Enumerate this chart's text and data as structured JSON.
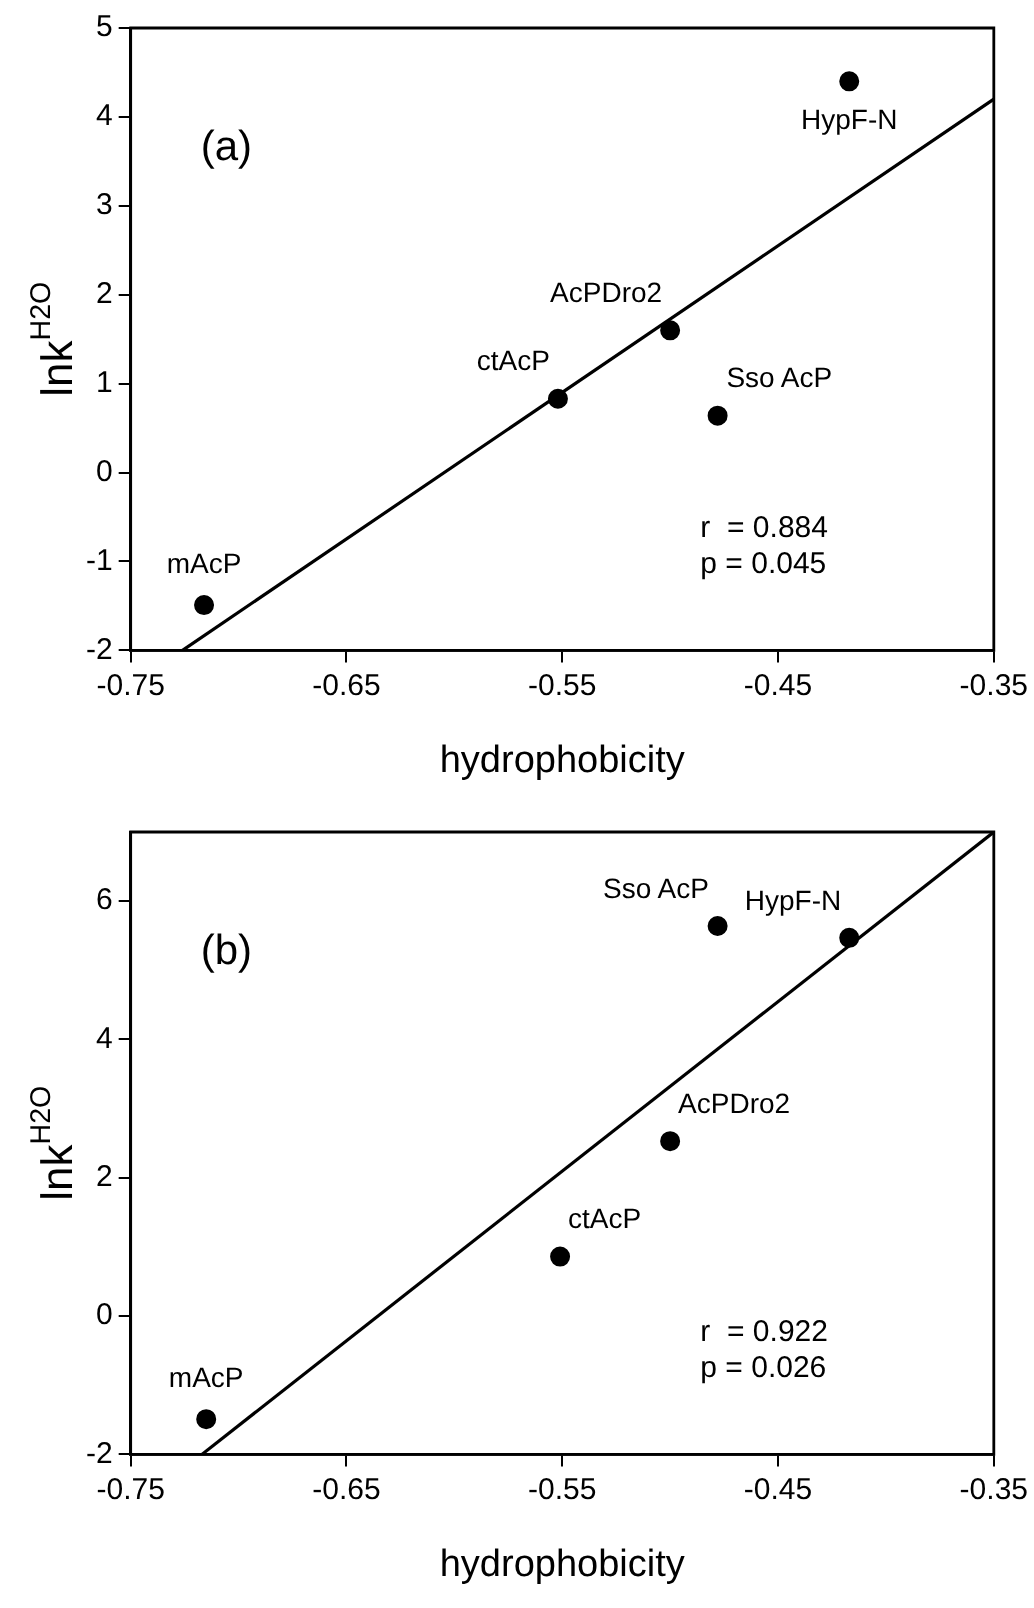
{
  "chart_data": [
    {
      "type": "scatter",
      "title": "(a)",
      "xlabel": "hydrophobicity",
      "ylabel": "lnk$^{H2O}$",
      "xlim": [
        -0.75,
        -0.35
      ],
      "xticks": [
        -0.75,
        -0.65,
        -0.55,
        -0.45,
        -0.35
      ],
      "ylim": [
        -2,
        5
      ],
      "yticks": [
        -2,
        -1,
        0,
        1,
        2,
        3,
        4,
        5
      ],
      "grid": false,
      "legend": false,
      "x": [
        -0.716,
        -0.552,
        -0.5,
        -0.478,
        -0.417
      ],
      "series": [
        {
          "color": "#000000",
          "marker": "circle",
          "values": [
            -1.49,
            0.83,
            1.6,
            0.64,
            4.4
          ]
        },
        {
          "type": "line",
          "color": "#000000",
          "x": [
            -0.726,
            -0.35
          ],
          "values": [
            -2,
            4.2
          ]
        }
      ],
      "annotations": [
        {
          "text": "mAcP",
          "x": -0.716,
          "y": -1.49
        },
        {
          "text": "ctAcP",
          "x": -0.552,
          "y": 0.83
        },
        {
          "text": "AcPDro2",
          "x": -0.5,
          "y": 1.6
        },
        {
          "text": "Sso AcP",
          "x": -0.478,
          "y": 0.64
        },
        {
          "text": "HypF-N",
          "x": -0.417,
          "y": 4.4
        },
        "r  = 0.884",
        "p = 0.045"
      ]
    },
    {
      "type": "scatter",
      "title": "(b)",
      "xlabel": "hydrophobicity",
      "ylabel": "lnk$^{H2O}$",
      "xlim": [
        -0.75,
        -0.35
      ],
      "xticks": [
        -0.75,
        -0.65,
        -0.55,
        -0.45,
        -0.35
      ],
      "ylim": [
        -2,
        7
      ],
      "yticks": [
        -2,
        0,
        2,
        4,
        6
      ],
      "grid": false,
      "legend": false,
      "x": [
        -0.715,
        -0.551,
        -0.5,
        -0.478,
        -0.417
      ],
      "series": [
        {
          "color": "#000000",
          "marker": "circle",
          "values": [
            -1.49,
            0.86,
            2.53,
            5.64,
            5.47
          ]
        },
        {
          "type": "line",
          "color": "#000000",
          "x": [
            -0.717,
            -0.35
          ],
          "values": [
            -2,
            7
          ]
        }
      ],
      "annotations": [
        {
          "text": "mAcP",
          "x": -0.715,
          "y": -1.49
        },
        {
          "text": "ctAcP",
          "x": -0.551,
          "y": 0.86
        },
        {
          "text": "AcPDro2",
          "x": -0.5,
          "y": 2.53
        },
        {
          "text": "Sso AcP",
          "x": -0.478,
          "y": 5.64
        },
        {
          "text": "HypF-N",
          "x": -0.417,
          "y": 5.47
        },
        "r  = 0.922",
        "p = 0.026"
      ]
    }
  ]
}
